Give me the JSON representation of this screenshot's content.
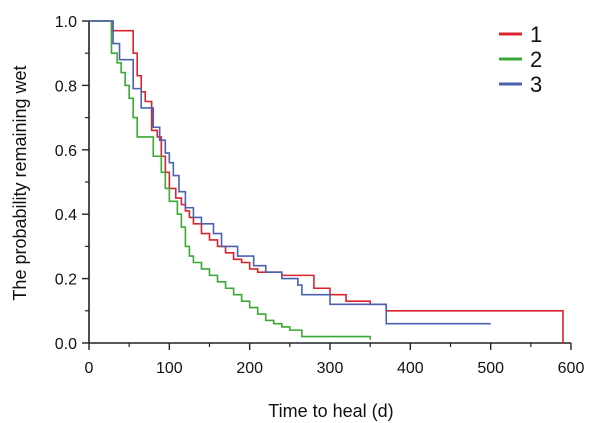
{
  "chart_data": {
    "type": "line",
    "step": true,
    "title": "",
    "xlabel": "Time to heal (d)",
    "ylabel": "The probability remaining wet",
    "xlim": [
      0,
      600
    ],
    "ylim": [
      0,
      1.0
    ],
    "xticks": [
      "0",
      "100",
      "200",
      "300",
      "400",
      "500",
      "600"
    ],
    "yticks": [
      "0.0",
      "0.2",
      "0.4",
      "0.6",
      "0.8",
      "1.0"
    ],
    "grid": false,
    "legend_position": "top-right",
    "series": [
      {
        "name": "1",
        "color": "#d9232e",
        "x": [
          0,
          28,
          55,
          60,
          65,
          70,
          78,
          85,
          90,
          95,
          100,
          108,
          115,
          120,
          125,
          130,
          140,
          150,
          160,
          170,
          180,
          190,
          200,
          210,
          220,
          240,
          260,
          280,
          300,
          320,
          350,
          370,
          590
        ],
        "y": [
          1.0,
          0.97,
          0.9,
          0.83,
          0.78,
          0.75,
          0.66,
          0.64,
          0.58,
          0.53,
          0.48,
          0.45,
          0.43,
          0.41,
          0.39,
          0.37,
          0.34,
          0.32,
          0.3,
          0.28,
          0.26,
          0.25,
          0.23,
          0.22,
          0.22,
          0.21,
          0.21,
          0.17,
          0.15,
          0.13,
          0.12,
          0.1,
          0.0
        ]
      },
      {
        "name": "2",
        "color": "#3aa935",
        "x": [
          0,
          28,
          35,
          40,
          45,
          50,
          55,
          60,
          80,
          90,
          95,
          100,
          110,
          115,
          120,
          125,
          130,
          140,
          150,
          160,
          170,
          180,
          190,
          200,
          210,
          220,
          230,
          240,
          250,
          265,
          350
        ],
        "y": [
          1.0,
          0.9,
          0.87,
          0.84,
          0.8,
          0.76,
          0.7,
          0.64,
          0.58,
          0.53,
          0.48,
          0.44,
          0.4,
          0.36,
          0.3,
          0.27,
          0.25,
          0.23,
          0.21,
          0.19,
          0.17,
          0.15,
          0.13,
          0.11,
          0.09,
          0.07,
          0.06,
          0.05,
          0.04,
          0.02,
          0.01
        ]
      },
      {
        "name": "3",
        "color": "#4a62b0",
        "x": [
          0,
          30,
          38,
          55,
          65,
          80,
          88,
          95,
          100,
          105,
          112,
          120,
          130,
          140,
          155,
          165,
          185,
          205,
          220,
          240,
          260,
          265,
          300,
          370,
          500
        ],
        "y": [
          1.0,
          0.93,
          0.88,
          0.79,
          0.73,
          0.67,
          0.63,
          0.59,
          0.56,
          0.52,
          0.47,
          0.42,
          0.39,
          0.37,
          0.34,
          0.3,
          0.27,
          0.24,
          0.22,
          0.2,
          0.18,
          0.15,
          0.12,
          0.06,
          0.06
        ]
      }
    ]
  }
}
